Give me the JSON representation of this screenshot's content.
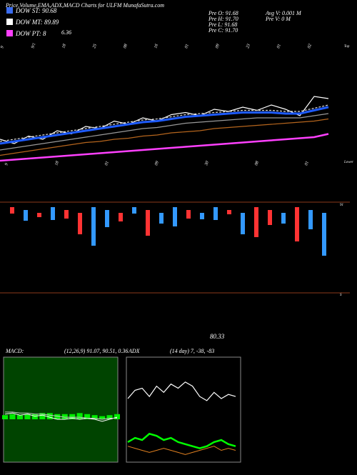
{
  "header": {
    "title": "Price,Volume,EMA,ADX,MACD Charts for ULFM MunafaSutra.com"
  },
  "legend": [
    {
      "label": "DOW ST: 90.68",
      "color": "#3a6cf0"
    },
    {
      "label": "DOW MT: 89.89",
      "color": "#ffffff"
    },
    {
      "label": "DOW PT: 8",
      "color": "#ff40ff"
    }
  ],
  "legend_extra": "6.36",
  "info": {
    "left": [
      "Pre O: 91.68",
      "Pre H: 91.70",
      "Pre L: 91.68",
      "Pre C: 91.70"
    ],
    "right": [
      "Avg V: 0.001 M",
      "Pre V: 0 M"
    ]
  },
  "top_dates": [
    "9",
    "9/1",
    "18",
    "25",
    "08",
    "16",
    "01",
    "09",
    "23",
    "01",
    "02"
  ],
  "mid_dates": [
    "9",
    "18",
    "01",
    "09",
    "30",
    "08",
    "01"
  ],
  "price_label": "80.33",
  "axis_notes": [
    "Top",
    "Lower",
    "91",
    "S"
  ],
  "chart_data": {
    "type": "line",
    "ylim": [
      0,
      100
    ],
    "series": [
      {
        "name": "Price",
        "color": "#ffffff",
        "values": [
          30,
          26,
          33,
          30,
          38,
          35,
          42,
          40,
          47,
          44,
          50,
          47,
          53,
          55,
          52,
          58,
          56,
          60,
          57,
          62,
          58,
          52,
          70,
          68
        ]
      },
      {
        "name": "EMA short",
        "color": "#1e5bff",
        "values": [
          26,
          28,
          30,
          32,
          34,
          36,
          38,
          40,
          42,
          44,
          46,
          47,
          49,
          51,
          52,
          53,
          54,
          55,
          55,
          55,
          54,
          54,
          57,
          60
        ]
      },
      {
        "name": "EMA mid",
        "color": "#dddddd",
        "values": [
          28,
          30,
          32,
          34,
          36,
          38,
          40,
          42,
          44,
          46,
          48,
          49,
          51,
          53,
          54,
          55,
          56,
          57,
          57,
          57,
          56,
          56,
          59,
          62
        ]
      },
      {
        "name": "EMA long",
        "color": "#999999",
        "values": [
          20,
          22,
          24,
          26,
          28,
          30,
          32,
          34,
          36,
          38,
          40,
          41,
          43,
          45,
          46,
          47,
          48,
          49,
          50,
          50,
          50,
          50,
          52,
          54
        ]
      },
      {
        "name": "EMA trend",
        "color": "#b5651d",
        "values": [
          15,
          17,
          19,
          21,
          23,
          25,
          27,
          28,
          30,
          31,
          33,
          34,
          36,
          37,
          38,
          40,
          41,
          42,
          43,
          44,
          45,
          46,
          47,
          49
        ]
      },
      {
        "name": "EMA slow",
        "color": "#ff40ff",
        "values": [
          10,
          11,
          12,
          13,
          14,
          15,
          16,
          17,
          18,
          19,
          20,
          21,
          22,
          23,
          24,
          25,
          26,
          27,
          28,
          29,
          30,
          31,
          32,
          35
        ]
      }
    ],
    "volume": {
      "values": [
        3,
        5,
        2,
        6,
        4,
        10,
        18,
        8,
        4,
        3,
        12,
        5,
        9,
        4,
        3,
        6,
        2,
        10,
        14,
        7,
        5,
        16,
        9,
        20
      ],
      "colors": [
        "#ff3333",
        "#3399ff",
        "#ff3333",
        "#3399ff",
        "#ff3333",
        "#ff3333",
        "#3399ff",
        "#3399ff",
        "#ff3333",
        "#3399ff",
        "#ff3333",
        "#3399ff",
        "#3399ff",
        "#ff3333",
        "#3399ff",
        "#3399ff",
        "#ff3333",
        "#3399ff",
        "#ff3333",
        "#ff3333",
        "#3399ff",
        "#ff3333",
        "#3399ff",
        "#3399ff"
      ]
    },
    "macd": {
      "label": "MACD:",
      "params": "(12,26,9) 91.07, 90.51, 0.36",
      "ylim": [
        0,
        100
      ],
      "line": [
        45,
        46,
        44,
        45,
        43,
        44,
        42,
        40,
        40,
        41,
        40,
        41,
        40,
        38,
        40,
        42
      ],
      "signal": [
        47,
        47,
        46,
        46,
        45,
        45,
        44,
        43,
        42,
        42,
        42,
        41,
        41,
        40,
        41,
        41
      ],
      "hist": [
        4,
        5,
        4,
        5,
        5,
        6,
        6,
        5,
        5,
        5,
        6,
        5,
        4,
        3,
        4,
        5
      ]
    },
    "adx": {
      "label": "ADX",
      "params": "(14 day) 7, -38, -83",
      "ylim": [
        0,
        100
      ],
      "white": [
        60,
        68,
        70,
        62,
        72,
        66,
        74,
        70,
        76,
        72,
        62,
        58,
        66,
        60,
        64,
        62
      ],
      "green": [
        18,
        22,
        20,
        26,
        24,
        20,
        22,
        18,
        16,
        14,
        12,
        14,
        18,
        20,
        16,
        14
      ],
      "orange": [
        14,
        12,
        10,
        8,
        10,
        12,
        10,
        8,
        6,
        8,
        10,
        12,
        14,
        10,
        12,
        10
      ]
    }
  }
}
